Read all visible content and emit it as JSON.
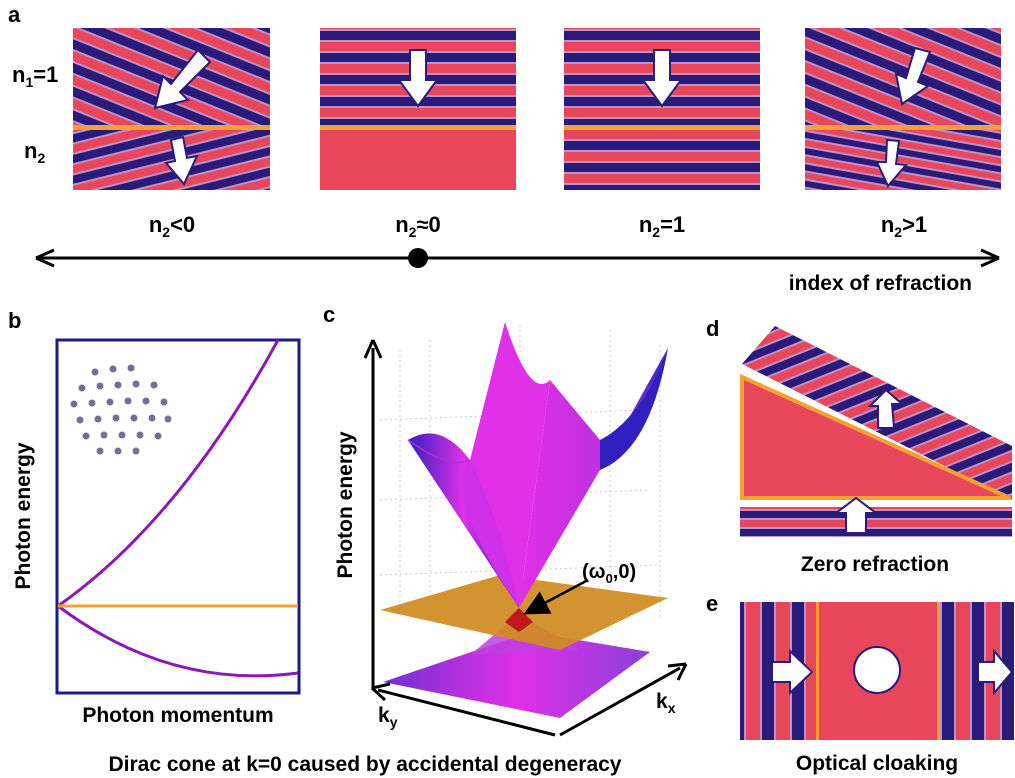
{
  "panel_a": {
    "letter": "a",
    "n1_label": "n",
    "n1_sub": "1",
    "n1_value": "=1",
    "n2_label": "n",
    "n2_sub": "2",
    "cases": [
      {
        "pre": "n",
        "sub": "2",
        "post": "<0"
      },
      {
        "pre": "n",
        "sub": "2",
        "post": "≈0"
      },
      {
        "pre": "n",
        "sub": "2",
        "post": "=1"
      },
      {
        "pre": "n",
        "sub": "2",
        "post": ">1"
      }
    ],
    "axis_label": "index of refraction"
  },
  "panel_b": {
    "letter": "b",
    "ylabel": "Photon energy",
    "xlabel": "Photon momentum"
  },
  "panel_c": {
    "letter": "c",
    "ylabel": "Photon energy",
    "point_pre": "(ω",
    "point_sub": "0",
    "point_post": ",0)",
    "kx_pre": "k",
    "kx_sub": "x",
    "ky_pre": "k",
    "ky_sub": "y"
  },
  "panel_d": {
    "letter": "d",
    "caption": "Zero refraction"
  },
  "panel_e": {
    "letter": "e",
    "caption": "Optical cloaking"
  },
  "footer": "Dirac cone at k=0 caused by accidental degeneracy",
  "colors": {
    "wave_red": "#e8465a",
    "wave_blue": "#2a1a7a",
    "interface_orange": "#f5a030",
    "band_purple": "#8a1ab8",
    "flat_band_orange": "#f5a030",
    "panel_border": "#1a1a8a",
    "cone_magenta": "#e030e8",
    "cone_blue": "#3020c0"
  }
}
